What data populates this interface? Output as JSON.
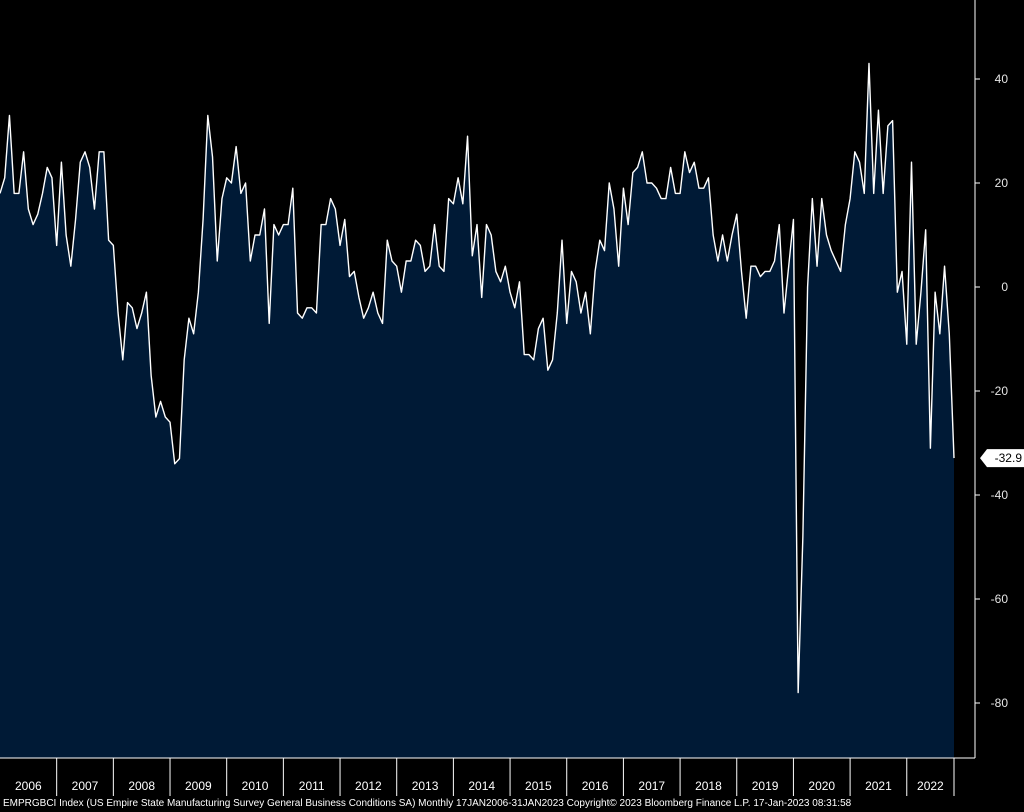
{
  "colors": {
    "background": "#000000",
    "area_fill": "#001a36",
    "line": "#ffffff",
    "axis": "#ffffff"
  },
  "footer_text": "EMPRGBCI Index (US Empire State Manufacturing Survey General Business Conditions SA)  Monthly 17JAN2006-31JAN2023 Copyright© 2023 Bloomberg Finance L.P.  17-Jan-2023 08:31:58",
  "chart_data": {
    "type": "area",
    "title": "",
    "xlabel": "",
    "ylabel": "",
    "ylim": [
      -91,
      54
    ],
    "xlim": [
      "2006-01",
      "2023-01"
    ],
    "y_ticks": [
      40,
      20,
      0,
      -20,
      -40,
      -60,
      -80
    ],
    "x_tick_labels": [
      "2006",
      "2007",
      "2008",
      "2009",
      "2010",
      "2011",
      "2012",
      "2013",
      "2014",
      "2015",
      "2016",
      "2017",
      "2018",
      "2019",
      "2020",
      "2021",
      "2022"
    ],
    "last_value_label": "-32.9",
    "grid": false,
    "series": [
      {
        "values": [
          18,
          21,
          33,
          18,
          18,
          26,
          15,
          12,
          14,
          18,
          23,
          21,
          8,
          24,
          10,
          4,
          13,
          24,
          26,
          23,
          15,
          26,
          26,
          9,
          8,
          -5,
          -14,
          -3,
          -4,
          -8,
          -5,
          -1,
          -17,
          -25,
          -22,
          -25,
          -26,
          -34,
          -33,
          -14,
          -6,
          -9,
          -1,
          13,
          33,
          25,
          5,
          17,
          21,
          20,
          27,
          18,
          20,
          5,
          10,
          10,
          15,
          -7,
          12,
          10,
          12,
          12,
          19,
          -5,
          -6,
          -4,
          -4,
          -5,
          12,
          12,
          17,
          15,
          8,
          13,
          2,
          3,
          -2,
          -6,
          -4,
          -1,
          -5,
          -7,
          9,
          5,
          4,
          -1,
          5,
          5,
          9,
          8,
          3,
          4,
          12,
          4,
          3,
          17,
          16,
          21,
          16,
          29,
          6,
          12,
          -2,
          12,
          10,
          3,
          1,
          4,
          -1,
          -4,
          1,
          -13,
          -13,
          -14,
          -8,
          -6,
          -16,
          -14,
          -5,
          9,
          -7,
          3,
          1,
          -5,
          -1,
          -9,
          3,
          9,
          7,
          20,
          15,
          4,
          19,
          12,
          22,
          23,
          26,
          20,
          20,
          19,
          17,
          17,
          23,
          18,
          18,
          26,
          22,
          24,
          19,
          19,
          21,
          10,
          5,
          10,
          5,
          10,
          14,
          3,
          -6,
          4,
          4,
          2,
          3,
          3,
          5,
          12,
          -5,
          4,
          13,
          -78,
          -48,
          0,
          17,
          4,
          17,
          10,
          7,
          5,
          3,
          12,
          17,
          26,
          24,
          18,
          43,
          18,
          34,
          18,
          31,
          32,
          -1,
          3,
          -11,
          24,
          -11,
          -1,
          11,
          -31,
          -1,
          -9,
          4,
          -9,
          -32.9
        ]
      }
    ]
  }
}
